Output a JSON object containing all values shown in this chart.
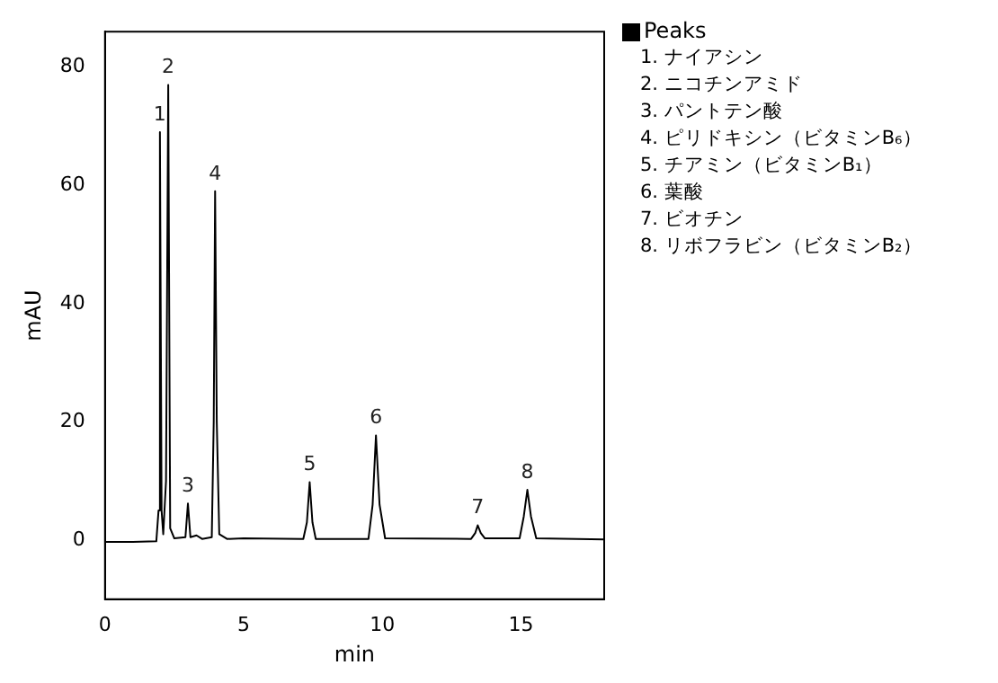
{
  "chart_data": {
    "type": "line",
    "xlabel": "min",
    "ylabel": "mAU",
    "legend_title": "Peaks",
    "xlim": [
      0,
      18
    ],
    "xticks": [
      0,
      5,
      10,
      15
    ],
    "ylim": [
      -10,
      86
    ],
    "yticks": [
      0,
      20,
      40,
      60,
      80
    ],
    "grid": false,
    "series": [
      {
        "color": "#000000",
        "x": [
          0,
          1.0,
          1.85,
          1.93,
          1.98,
          2.04,
          2.1,
          2.2,
          2.28,
          2.35,
          2.5,
          2.9,
          2.99,
          3.08,
          3.3,
          3.5,
          3.85,
          3.92,
          3.97,
          4.03,
          4.12,
          4.4,
          5.0,
          7.15,
          7.28,
          7.38,
          7.48,
          7.6,
          9.5,
          9.65,
          9.77,
          9.9,
          10.1,
          13.2,
          13.35,
          13.44,
          13.55,
          13.7,
          14.95,
          15.1,
          15.23,
          15.36,
          15.55,
          18
        ],
        "values": [
          -0.3,
          -0.3,
          -0.2,
          5,
          69,
          5,
          1,
          10,
          77,
          2,
          0.3,
          0.5,
          6.2,
          0.5,
          0.8,
          0.2,
          0.5,
          20,
          59,
          20,
          1,
          0.2,
          0.3,
          0.2,
          3,
          9.8,
          3,
          0.2,
          0.2,
          6,
          17.7,
          6,
          0.3,
          0.2,
          1.2,
          2.5,
          1.2,
          0.3,
          0.3,
          4,
          8.5,
          4,
          0.3,
          0.1
        ]
      }
    ],
    "annotations": [
      {
        "text": "1",
        "x": 1.98,
        "y": 69
      },
      {
        "text": "2",
        "x": 2.28,
        "y": 77
      },
      {
        "text": "3",
        "x": 2.99,
        "y": 6.2
      },
      {
        "text": "4",
        "x": 3.97,
        "y": 59
      },
      {
        "text": "5",
        "x": 7.38,
        "y": 9.8
      },
      {
        "text": "6",
        "x": 9.77,
        "y": 17.7
      },
      {
        "text": "7",
        "x": 13.44,
        "y": 2.5
      },
      {
        "text": "8",
        "x": 15.23,
        "y": 8.5
      },
      "1. ナイアシン",
      "2. ニコチンアミド",
      "3. パントテン酸",
      "4. ピリドキシン（ビタミンB₆）",
      "5. チアミン（ビタミンB₁）",
      "6. 葉酸",
      "7. ビオチン",
      "8. リボフラビン（ビタミンB₂）"
    ]
  }
}
